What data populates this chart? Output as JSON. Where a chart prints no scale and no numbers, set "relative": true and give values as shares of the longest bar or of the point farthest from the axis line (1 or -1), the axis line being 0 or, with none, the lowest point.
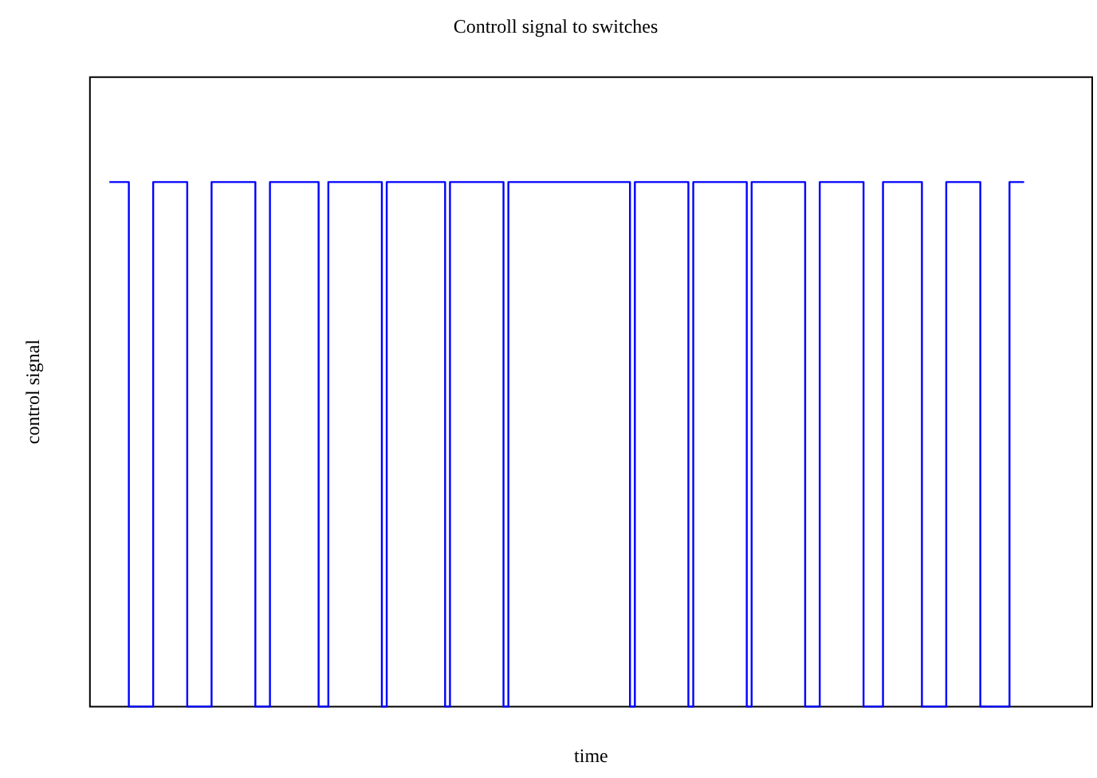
{
  "chart_data": {
    "type": "step",
    "title": "Controll signal to switches",
    "xlabel": "time",
    "ylabel": "control signal",
    "relative": true,
    "grid": false,
    "legend": false,
    "categories": [
      null,
      null,
      null,
      null,
      null,
      null,
      null,
      null,
      null,
      null,
      null,
      null,
      null,
      null,
      null,
      null,
      null,
      null,
      null,
      null,
      null,
      null,
      null,
      null,
      null,
      null,
      null,
      null,
      null,
      null,
      null,
      null,
      null,
      null,
      null,
      null,
      null,
      null,
      null,
      null,
      null,
      null,
      null,
      null,
      null,
      null,
      null,
      null,
      null,
      null,
      null,
      null,
      null,
      null,
      null,
      null,
      null,
      null,
      null,
      null,
      null,
      null,
      null,
      null,
      null,
      null,
      null,
      null,
      null,
      null,
      null,
      null,
      null,
      null,
      null,
      null,
      null,
      null,
      null,
      null,
      null,
      null,
      null,
      null,
      null,
      null,
      null,
      null,
      null,
      null,
      null,
      null,
      null,
      null,
      null,
      null,
      null,
      null,
      null,
      null,
      null,
      null,
      null,
      null,
      null,
      null,
      null,
      null,
      null,
      null,
      null,
      null,
      null,
      null,
      null,
      null,
      null,
      null,
      null,
      null,
      null,
      null,
      null,
      null,
      null,
      null,
      null,
      null,
      null,
      null,
      null,
      null,
      null,
      null,
      null,
      null,
      null,
      null,
      null,
      null,
      null,
      null,
      null,
      null,
      null,
      null,
      null,
      null,
      null,
      null,
      null,
      null,
      null,
      null,
      null,
      null,
      null,
      null,
      null,
      null,
      null,
      null,
      null,
      null,
      null,
      null,
      null,
      null,
      null,
      null,
      null,
      null,
      null,
      null,
      null,
      null,
      null,
      null,
      null,
      null,
      null,
      null,
      null,
      null,
      null,
      null,
      null,
      null,
      null,
      null,
      null,
      null,
      null,
      null,
      null,
      null,
      null,
      null,
      null,
      null,
      null,
      null,
      null,
      null,
      null,
      null,
      null
    ],
    "series": [
      {
        "color": "#0000ff",
        "values": [
          null,
          null,
          null,
          null,
          1,
          1,
          1,
          1,
          0,
          0,
          0,
          0,
          0,
          1,
          1,
          1,
          1,
          1,
          1,
          1,
          0,
          0,
          0,
          0,
          0,
          1,
          1,
          1,
          1,
          1,
          1,
          1,
          1,
          1,
          0,
          0,
          0,
          1,
          1,
          1,
          1,
          1,
          1,
          1,
          1,
          1,
          1,
          0,
          0,
          1,
          1,
          1,
          1,
          1,
          1,
          1,
          1,
          1,
          1,
          1,
          0,
          1,
          1,
          1,
          1,
          1,
          1,
          1,
          1,
          1,
          1,
          1,
          1,
          0,
          1,
          1,
          1,
          1,
          1,
          1,
          1,
          1,
          1,
          1,
          1,
          0,
          1,
          1,
          1,
          1,
          1,
          1,
          1,
          1,
          1,
          1,
          1,
          1,
          1,
          1,
          1,
          1,
          1,
          1,
          1,
          1,
          1,
          1,
          1,
          1,
          1,
          0,
          1,
          1,
          1,
          1,
          1,
          1,
          1,
          1,
          1,
          1,
          1,
          0,
          1,
          1,
          1,
          1,
          1,
          1,
          1,
          1,
          1,
          1,
          1,
          0,
          1,
          1,
          1,
          1,
          1,
          1,
          1,
          1,
          1,
          1,
          1,
          0,
          0,
          0,
          1,
          1,
          1,
          1,
          1,
          1,
          1,
          1,
          1,
          0,
          0,
          0,
          0,
          1,
          1,
          1,
          1,
          1,
          1,
          1,
          1,
          0,
          0,
          0,
          0,
          0,
          1,
          1,
          1,
          1,
          1,
          1,
          1,
          0,
          0,
          0,
          0,
          0,
          0,
          1,
          1,
          1,
          1,
          null,
          null,
          null,
          null,
          null,
          null,
          null,
          null,
          null,
          null,
          null,
          null,
          null,
          null
        ]
      }
    ]
  }
}
